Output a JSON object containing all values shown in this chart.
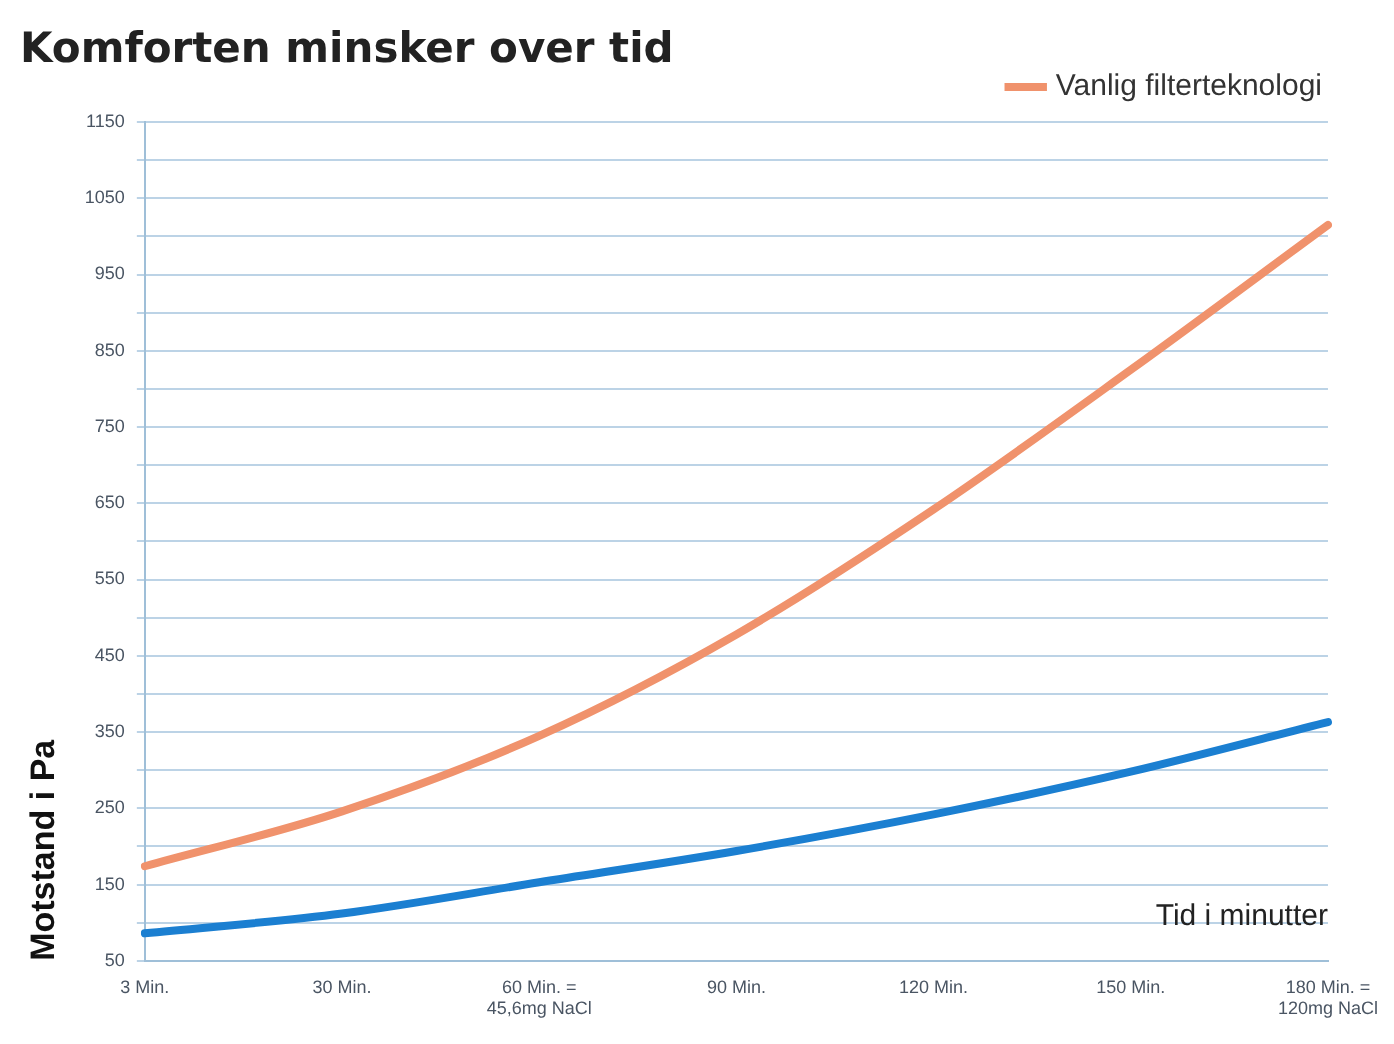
{
  "chart_data": {
    "type": "line",
    "title": "Komforten minsker over tid",
    "xlabel": "Tid i minutter",
    "ylabel": "Motstand i Pa",
    "categories": [
      "3 Min.",
      "30 Min.",
      "60 Min. = 45,6mg NaCl",
      "90 Min.",
      "120 Min.",
      "150 Min.",
      "180 Min. = 120mg NaCl"
    ],
    "series": [
      {
        "color": "#1b7fd1",
        "values": [
          86,
          112,
          153,
          194,
          242,
          298,
          363
        ]
      },
      {
        "name": "Vanlig filterteknologi",
        "color": "#f0926c",
        "values": [
          174,
          246,
          345,
          478,
          642,
          825,
          1015
        ]
      }
    ],
    "ylim": [
      50,
      1150
    ],
    "yticks": [
      50,
      {
        "value": 100,
        "label": null
      },
      150,
      {
        "value": 200,
        "label": null
      },
      250,
      {
        "value": 300,
        "label": null
      },
      350,
      {
        "value": 400,
        "label": null
      },
      450,
      {
        "value": 500,
        "label": null
      },
      550,
      {
        "value": 600,
        "label": null
      },
      650,
      {
        "value": 700,
        "label": null
      },
      750,
      {
        "value": 800,
        "label": null
      },
      850,
      {
        "value": 900,
        "label": null
      },
      950,
      {
        "value": 1000,
        "label": null
      },
      1050,
      {
        "value": 1100,
        "label": null
      },
      1150
    ],
    "grid": "y",
    "legend": "top right"
  }
}
